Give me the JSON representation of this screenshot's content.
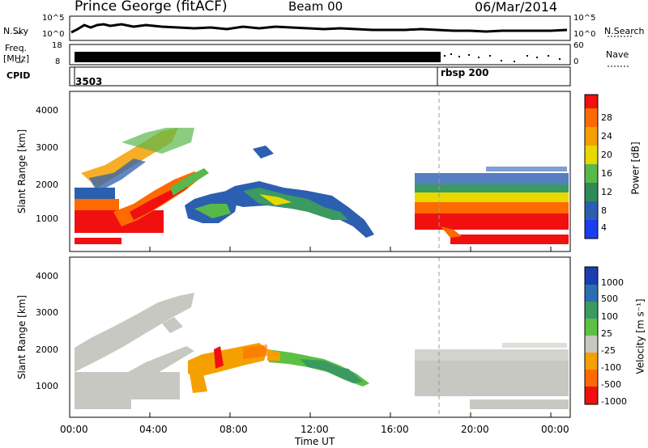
{
  "header": {
    "station": "Prince George (fitACF)",
    "beam": "Beam 00",
    "date": "06/Mar/2014"
  },
  "ancillary": {
    "nsky_label": "N.Sky",
    "nsearch_label": "N.Search",
    "freq_label_1": "Freq.",
    "freq_label_2": "[MHz]",
    "nave_label": "Nave",
    "cpid_label": "CPID",
    "cpid_values": [
      "3503",
      "rbsp 200"
    ],
    "noise_left_ticks": [
      "10^5",
      "10^0"
    ],
    "noise_right_ticks": [
      "10^5",
      "10^0"
    ],
    "freq_left_ticks": [
      "18",
      "8"
    ],
    "nave_right_ticks": [
      "60",
      "0"
    ]
  },
  "chart_data": [
    {
      "type": "heatmap",
      "panel": "power",
      "ylabel": "Slant Range [km]",
      "yticks": [
        "4000",
        "3000",
        "2000",
        "1000"
      ],
      "ylim": [
        200,
        4600
      ],
      "colorbar": {
        "label": "Power [dB]",
        "ticks": [
          "28",
          "24",
          "20",
          "16",
          "12",
          "8",
          "4"
        ],
        "colors": [
          "#1a3df0",
          "#2c5fb0",
          "#2f8a54",
          "#59b84a",
          "#e7d800",
          "#f5a000",
          "#ff6a00",
          "#f01010"
        ]
      }
    },
    {
      "type": "heatmap",
      "panel": "velocity",
      "ylabel": "Slant Range [km]",
      "yticks": [
        "4000",
        "3000",
        "2000",
        "1000"
      ],
      "ylim": [
        200,
        4600
      ],
      "colorbar": {
        "label": "Velocity [m s⁻¹]",
        "ticks": [
          "1000",
          "500",
          "100",
          "25",
          "-25",
          "-100",
          "-500",
          "-1000"
        ],
        "colors": [
          "#1a3db0",
          "#2c6fb0",
          "#3a9a62",
          "#5cc044",
          "#c8c8c2",
          "#f5a000",
          "#ff6a00",
          "#f01010"
        ]
      }
    }
  ],
  "xaxis": {
    "label": "Time UT",
    "ticks": [
      "00:00",
      "04:00",
      "08:00",
      "12:00",
      "16:00",
      "20:00",
      "00:00"
    ]
  }
}
